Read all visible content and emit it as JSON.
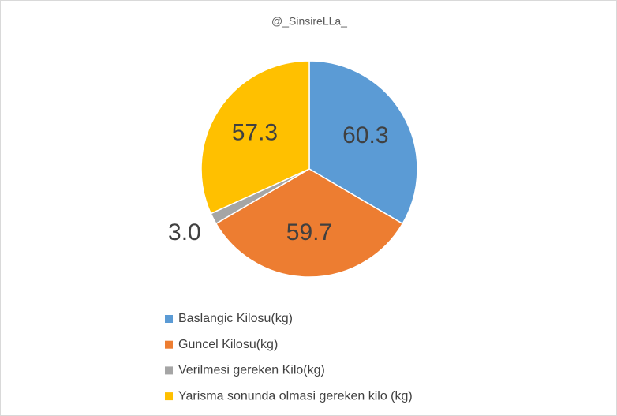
{
  "chart_data": {
    "type": "pie",
    "title": "@_SinsireLLa_",
    "categories": [
      "Baslangic Kilosu(kg)",
      "Guncel Kilosu(kg)",
      "Verilmesi gereken Kilo(kg)",
      "Yarisma sonunda olmasi gereken kilo (kg)"
    ],
    "values": [
      60.3,
      59.7,
      3.0,
      57.3
    ],
    "value_labels": [
      "60.3",
      "59.7",
      "3.0",
      "57.3"
    ],
    "colors": [
      "#5b9bd5",
      "#ed7d31",
      "#a5a5a5",
      "#ffc000"
    ],
    "legend": "bottom"
  }
}
